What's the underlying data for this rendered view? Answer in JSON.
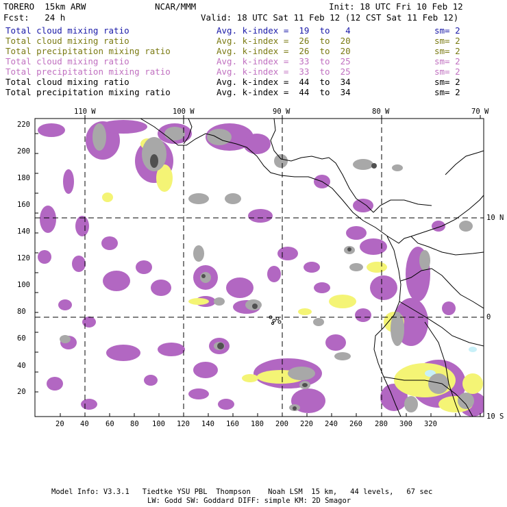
{
  "header": {
    "model": "TORERO  15km ARW",
    "org": "NCAR/MMM",
    "init": "Init: 18 UTC Fri 10 Feb 12",
    "fcst": "Fcst:   24 h",
    "valid": "Valid: 18 UTC Sat 11 Feb 12 (12 CST Sat 11 Feb 12)"
  },
  "fields": [
    {
      "name": "Total cloud mixing ratio",
      "info": "Avg. k-index =  19  to   4",
      "sm": "sm= 2",
      "color": "#1a1aa8"
    },
    {
      "name": "Total cloud mixing ratio",
      "info": "Avg. k-index =  26  to  20",
      "sm": "sm= 2",
      "color": "#7a7a12"
    },
    {
      "name": "Total precipitation mixing ratio",
      "info": "Avg. k-index =  26  to  20",
      "sm": "sm= 2",
      "color": "#7a7a12"
    },
    {
      "name": "Total cloud mixing ratio",
      "info": "Avg. k-index =  33  to  25",
      "sm": "sm= 2",
      "color": "#c070c0"
    },
    {
      "name": "Total precipitation mixing ratio",
      "info": "Avg. k-index =  33  to  25",
      "sm": "sm= 2",
      "color": "#c070c0"
    },
    {
      "name": "Total cloud mixing ratio",
      "info": "Avg. k-index =  44  to  34",
      "sm": "sm= 2",
      "color": "#000000"
    },
    {
      "name": "Total precipitation mixing ratio",
      "info": "Avg. k-index =  44  to  34",
      "sm": "sm= 2",
      "color": "#000000"
    }
  ],
  "map": {
    "lon_labels": [
      "110 W",
      "100 W",
      "90 W",
      "80 W",
      "70 W"
    ],
    "lat_labels": [
      "10 N",
      "0",
      "10 S"
    ],
    "y_ticks": [
      "20",
      "40",
      "60",
      "80",
      "100",
      "120",
      "140",
      "160",
      "180",
      "200",
      "220"
    ],
    "x_ticks": [
      "20",
      "40",
      "60",
      "80",
      "100",
      "120",
      "140",
      "160",
      "180",
      "200",
      "220",
      "240",
      "260",
      "280",
      "300",
      "320"
    ],
    "colors": {
      "gray": "#a8a8a8",
      "dark_gray": "#505050",
      "purple": "#b267c2",
      "yellow": "#f4f475",
      "cyan": "#c8f0f8"
    }
  },
  "footer": {
    "line1": "Model Info: V3.3.1   Tiedtke YSU PBL  Thompson    Noah LSM  15 km,   44 levels,   67 sec",
    "line2": "LW: Godd SW: Goddard DIFF: simple KM: 2D Smagor"
  }
}
